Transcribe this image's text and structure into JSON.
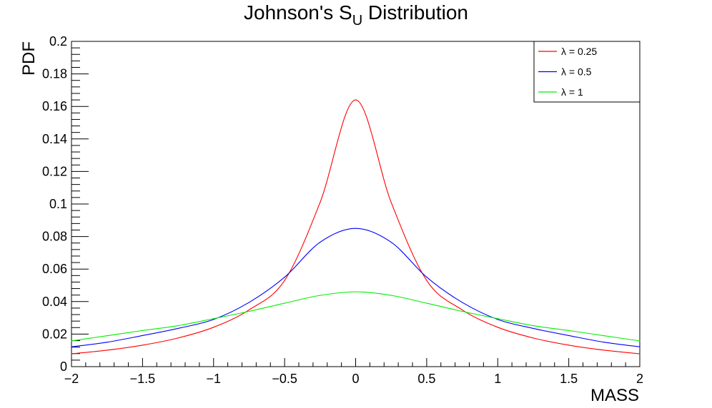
{
  "chart_data": {
    "type": "line",
    "title": "Johnson's S",
    "title_subscript": "U",
    "title_suffix": "Distribution",
    "xlabel": "MASS",
    "ylabel": "PDF",
    "xlim": [
      -2,
      2
    ],
    "ylim": [
      0,
      0.2
    ],
    "x_ticks": [
      -2,
      -1.5,
      -1,
      -0.5,
      0,
      0.5,
      1,
      1.5,
      2
    ],
    "x_tick_labels": [
      "−2",
      "−1.5",
      "−1",
      "−0.5",
      "0",
      "0.5",
      "1",
      "1.5",
      "2"
    ],
    "y_ticks": [
      0,
      0.02,
      0.04,
      0.06,
      0.08,
      0.1,
      0.12,
      0.14,
      0.16,
      0.18,
      0.2
    ],
    "y_tick_labels": [
      "0",
      "0.02",
      "0.04",
      "0.06",
      "0.08",
      "0.1",
      "0.12",
      "0.14",
      "0.16",
      "0.18",
      "0.2"
    ],
    "grid": false,
    "legend_position": "top-right",
    "x": [
      -2,
      -1.75,
      -1.5,
      -1.25,
      -1,
      -0.75,
      -0.5,
      -0.25,
      0,
      0.25,
      0.5,
      0.75,
      1,
      1.25,
      1.5,
      1.75,
      2
    ],
    "series": [
      {
        "name": "λ = 0.25",
        "color": "#ff0000",
        "values": [
          0.0079,
          0.0101,
          0.0132,
          0.0176,
          0.0242,
          0.0349,
          0.053,
          0.101,
          0.164,
          0.101,
          0.053,
          0.0349,
          0.0242,
          0.0176,
          0.0132,
          0.0101,
          0.0079
        ]
      },
      {
        "name": "λ = 0.5",
        "color": "#0000ff",
        "values": [
          0.0122,
          0.015,
          0.0191,
          0.0235,
          0.029,
          0.0395,
          0.055,
          0.0765,
          0.085,
          0.0765,
          0.055,
          0.0395,
          0.029,
          0.0235,
          0.0191,
          0.015,
          0.0122
        ]
      },
      {
        "name": "λ = 1",
        "color": "#00ee00",
        "values": [
          0.0158,
          0.019,
          0.0222,
          0.0252,
          0.0295,
          0.034,
          0.039,
          0.0438,
          0.046,
          0.0438,
          0.039,
          0.034,
          0.0295,
          0.0252,
          0.0222,
          0.019,
          0.0158
        ]
      }
    ]
  }
}
